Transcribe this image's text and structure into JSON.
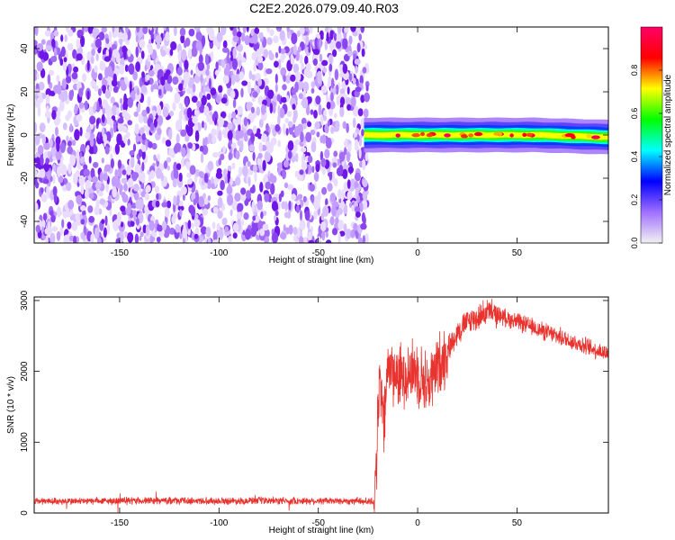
{
  "chart_data": [
    {
      "type": "heatmap",
      "title": "C2E2.2026.079.09.40.R03",
      "xlabel": "Height of straight line (km)",
      "ylabel": "Frequency (Hz)",
      "xlim": [
        -193,
        96
      ],
      "ylim": [
        -50,
        50
      ],
      "x_ticks": [
        -150,
        -100,
        -50,
        0,
        50
      ],
      "y_ticks": [
        -40,
        -20,
        0,
        20,
        40
      ],
      "colorbar": {
        "label": "Normalized spectral amplitude",
        "range": [
          0,
          1
        ],
        "ticks": [
          "0.0",
          "0.2",
          "0.4",
          "0.6",
          "0.8"
        ],
        "colors": [
          "#f2f2f2",
          "#a070ff",
          "#0000ff",
          "#00ffff",
          "#00ff00",
          "#ffff00",
          "#ff0000",
          "#ff0066"
        ]
      },
      "regions": [
        {
          "name": "noise",
          "x_range": [
            -193,
            -27
          ],
          "freq_range": [
            -50,
            50
          ],
          "amplitude": 0.2
        },
        {
          "name": "signal",
          "x_range": [
            -27,
            96
          ],
          "center_freq_hz": [
            [
              -27,
              0
            ],
            [
              60,
              0
            ],
            [
              96,
              -1
            ]
          ],
          "amplitude_peak": 0.95
        }
      ],
      "grid": false
    },
    {
      "type": "line",
      "xlabel": "Height of straight line (km)",
      "ylabel": "SNR (10 * v/v)",
      "xlim": [
        -193,
        96
      ],
      "ylim": [
        0,
        3050
      ],
      "x_ticks": [
        -150,
        -100,
        -50,
        0,
        50
      ],
      "y_ticks": [
        0,
        1000,
        2000,
        3000
      ],
      "color": "#e8332f",
      "series": [
        {
          "x": [
            -193,
            -175,
            -150,
            -125,
            -100,
            -75,
            -50,
            -30,
            -22,
            -21,
            -19,
            -17,
            -15,
            -10,
            -5,
            0,
            5,
            10,
            15,
            20,
            25,
            30,
            35,
            40,
            45,
            50,
            55,
            60,
            65,
            70,
            75,
            80,
            85,
            90,
            96
          ],
          "y": [
            170,
            165,
            170,
            175,
            170,
            172,
            170,
            170,
            160,
            600,
            1900,
            1200,
            2100,
            1900,
            2000,
            2000,
            1800,
            2050,
            2300,
            2550,
            2700,
            2750,
            2850,
            2800,
            2750,
            2700,
            2650,
            2600,
            2550,
            2500,
            2450,
            2400,
            2350,
            2300,
            2250
          ]
        }
      ],
      "grid": false
    }
  ]
}
